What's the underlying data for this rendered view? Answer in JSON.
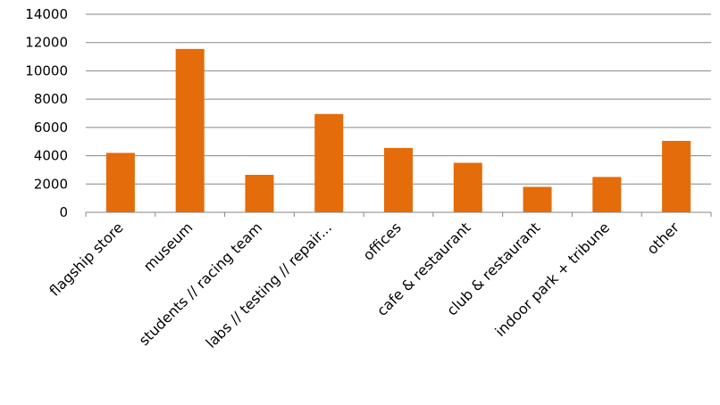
{
  "chart_data": {
    "type": "bar",
    "categories": [
      "flagship store",
      "museum",
      "students // racing team",
      "labs // testing // repair...",
      "offices",
      "cafe & restaurant",
      "club & restaurant",
      "indoor park + tribune",
      "other"
    ],
    "values": [
      4200,
      11550,
      2650,
      6950,
      4550,
      3500,
      1800,
      2500,
      5050
    ],
    "y_ticks": [
      "0",
      "2000",
      "4000",
      "6000",
      "8000",
      "10000",
      "12000",
      "14000"
    ],
    "ylim": [
      0,
      14000
    ],
    "grid": true,
    "legend": "none",
    "colors": {
      "bar": "#E46C0A",
      "grid": "#868686",
      "axis": "#868686"
    }
  }
}
